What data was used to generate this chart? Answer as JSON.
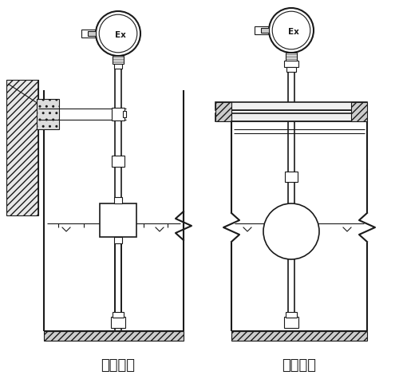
{
  "title_left": "架装固定",
  "title_right": "法兰固定",
  "bg_color": "#ffffff",
  "line_color": "#1a1a1a",
  "font_size_label": 13,
  "fig_width": 5.0,
  "fig_height": 4.75
}
